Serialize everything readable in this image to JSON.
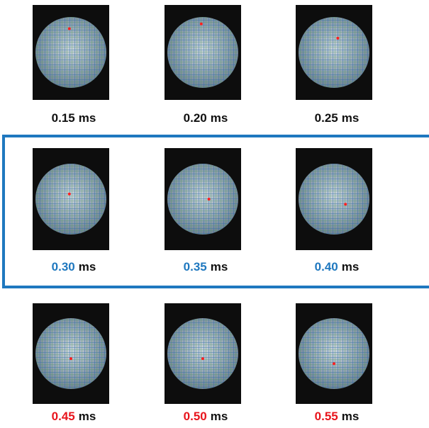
{
  "panels": [
    {
      "time": "0.15",
      "unit": "ms"
    },
    {
      "time": "0.20",
      "unit": "ms"
    },
    {
      "time": "0.25",
      "unit": "ms"
    },
    {
      "time": "0.30",
      "unit": "ms"
    },
    {
      "time": "0.35",
      "unit": "ms"
    },
    {
      "time": "0.40",
      "unit": "ms"
    },
    {
      "time": "0.45",
      "unit": "ms"
    },
    {
      "time": "0.50",
      "unit": "ms"
    },
    {
      "time": "0.55",
      "unit": "ms"
    }
  ]
}
